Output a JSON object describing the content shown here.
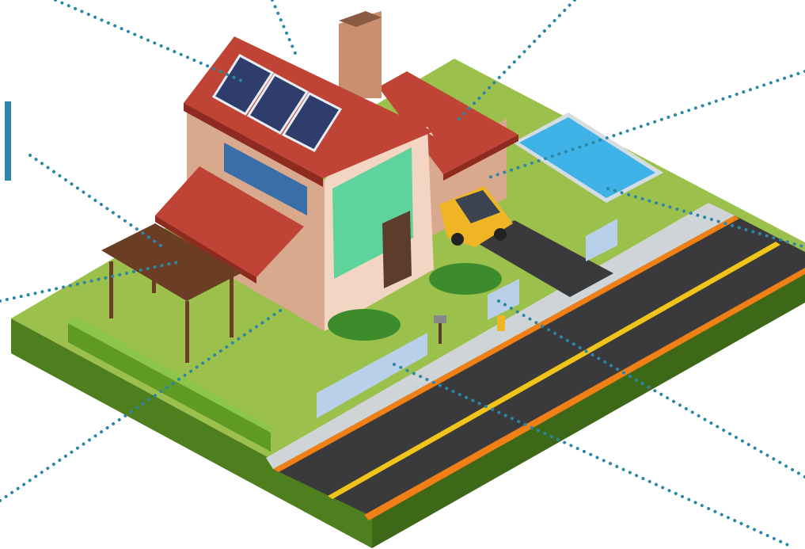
{
  "scene": {
    "subject": "isometric-house-illustration",
    "elements": [
      "solar-panels",
      "chimney",
      "main-roof",
      "garage-roof",
      "pergola",
      "swimming-pool",
      "car",
      "driveway",
      "sidewalk",
      "road",
      "front-door",
      "mailbox",
      "fire-hydrant",
      "flower-beds",
      "picket-fences",
      "hedge",
      "lamp-post"
    ]
  },
  "colors": {
    "accent": "#2b87a6",
    "callout_dots": "#2b87a6",
    "roof": "#c04436",
    "roof_dark": "#8f2a20",
    "wall": "#f3d5c3",
    "wall_shade": "#d9a98e",
    "trim": "#5e3c2c",
    "window": "#5fd39c",
    "grass": "#9cc04c",
    "grass_side": "#4e7e1e",
    "road": "#3a3a3c",
    "road_line": "#f0c419",
    "road_edge": "#f07f16",
    "pool": "#3fb2e8",
    "car": "#f0b525",
    "pergola": "#6a3d24",
    "fence": "#b9d0ea",
    "sidewalk": "#cfd4d6"
  }
}
